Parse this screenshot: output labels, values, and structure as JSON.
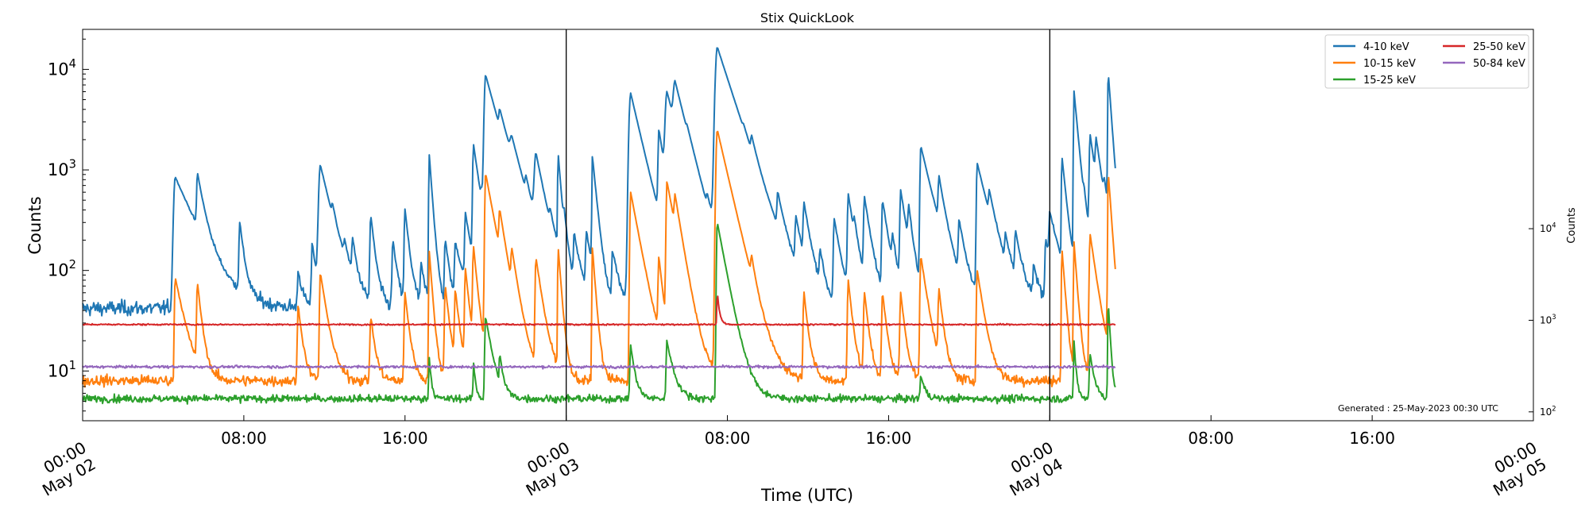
{
  "chart_data": {
    "type": "line",
    "title": "Stix QuickLook",
    "xlabel": "Time (UTC)",
    "ylabel": "Counts",
    "right_ylabel": "Counts",
    "yscale": "log",
    "ylim": [
      3.2,
      25000
    ],
    "xlim_hours": [
      0,
      72
    ],
    "data_end_hour": 51.25,
    "day_separators_hours": [
      24,
      48
    ],
    "x_ticks": [
      {
        "hour": 0,
        "line1": "00:00",
        "line2": "May 02",
        "major": true
      },
      {
        "hour": 8,
        "line1": "08:00",
        "line2": "",
        "major": false
      },
      {
        "hour": 16,
        "line1": "16:00",
        "line2": "",
        "major": false
      },
      {
        "hour": 24,
        "line1": "00:00",
        "line2": "May 03",
        "major": true
      },
      {
        "hour": 32,
        "line1": "08:00",
        "line2": "",
        "major": false
      },
      {
        "hour": 40,
        "line1": "16:00",
        "line2": "",
        "major": false
      },
      {
        "hour": 48,
        "line1": "00:00",
        "line2": "May 04",
        "major": true
      },
      {
        "hour": 56,
        "line1": "08:00",
        "line2": "",
        "major": false
      },
      {
        "hour": 64,
        "line1": "16:00",
        "line2": "",
        "major": false
      },
      {
        "hour": 72,
        "line1": "00:00",
        "line2": "May 05",
        "major": true
      }
    ],
    "y_ticks": [
      {
        "value": 10,
        "base": "10",
        "exp": "1"
      },
      {
        "value": 100,
        "base": "10",
        "exp": "2"
      },
      {
        "value": 1000,
        "base": "10",
        "exp": "3"
      },
      {
        "value": 10000,
        "base": "10",
        "exp": "4"
      }
    ],
    "right_axis": {
      "scale": "log",
      "ylim": [
        80,
        1500000
      ],
      "ticks": [
        {
          "value": 100,
          "base": "10",
          "exp": "2"
        },
        {
          "value": 1000,
          "base": "10",
          "exp": "3"
        },
        {
          "value": 10000,
          "base": "10",
          "exp": "4"
        }
      ]
    },
    "series": [
      {
        "name": "4-10 keV",
        "color": "#1f77b4",
        "baseline": 42,
        "noise": 0.12,
        "flares": [
          [
            4.6,
            850,
            0.1,
            0.9
          ],
          [
            5.7,
            700,
            0.05,
            0.3
          ],
          [
            7.8,
            280,
            0.05,
            0.2
          ],
          [
            10.7,
            100,
            0.05,
            0.2
          ],
          [
            11.4,
            190,
            0.05,
            0.2
          ],
          [
            11.8,
            1100,
            0.1,
            0.5
          ],
          [
            12.4,
            150,
            0.05,
            0.2
          ],
          [
            13.0,
            110,
            0.05,
            0.2
          ],
          [
            13.4,
            160,
            0.05,
            0.2
          ],
          [
            14.3,
            350,
            0.05,
            0.2
          ],
          [
            15.4,
            200,
            0.05,
            0.2
          ],
          [
            16.0,
            400,
            0.05,
            0.2
          ],
          [
            16.8,
            110,
            0.05,
            0.2
          ],
          [
            17.2,
            1450,
            0.03,
            0.15
          ],
          [
            18.0,
            200,
            0.05,
            0.2
          ],
          [
            18.5,
            180,
            0.05,
            0.4
          ],
          [
            19.0,
            330,
            0.05,
            0.3
          ],
          [
            19.4,
            1700,
            0.05,
            0.3
          ],
          [
            19.8,
            200,
            0.05,
            0.3
          ],
          [
            20.0,
            8500,
            0.08,
            0.6
          ],
          [
            20.7,
            1400,
            0.05,
            0.5
          ],
          [
            21.3,
            800,
            0.1,
            0.5
          ],
          [
            22.0,
            300,
            0.05,
            0.3
          ],
          [
            22.5,
            1200,
            0.1,
            0.4
          ],
          [
            23.2,
            150,
            0.05,
            0.3
          ],
          [
            23.6,
            1350,
            0.03,
            0.15
          ],
          [
            23.9,
            180,
            0.05,
            0.2
          ],
          [
            24.4,
            200,
            0.05,
            0.3
          ],
          [
            25.0,
            220,
            0.05,
            0.3
          ],
          [
            25.3,
            1300,
            0.03,
            0.2
          ],
          [
            26.3,
            150,
            0.05,
            0.3
          ],
          [
            27.2,
            5800,
            0.1,
            0.5
          ],
          [
            28.6,
            2200,
            0.05,
            0.3
          ],
          [
            29.0,
            5300,
            0.1,
            0.6
          ],
          [
            29.4,
            4800,
            0.1,
            0.5
          ],
          [
            30.0,
            350,
            0.05,
            0.4
          ],
          [
            31.0,
            180,
            0.05,
            0.3
          ],
          [
            31.5,
            16500,
            0.12,
            0.7
          ],
          [
            32.8,
            300,
            0.05,
            0.3
          ],
          [
            33.2,
            700,
            0.05,
            0.3
          ],
          [
            34.5,
            380,
            0.05,
            0.3
          ],
          [
            35.4,
            270,
            0.05,
            0.3
          ],
          [
            35.8,
            380,
            0.05,
            0.3
          ],
          [
            36.6,
            130,
            0.05,
            0.2
          ],
          [
            37.3,
            320,
            0.05,
            0.3
          ],
          [
            38.0,
            550,
            0.05,
            0.3
          ],
          [
            38.3,
            150,
            0.05,
            0.2
          ],
          [
            38.8,
            500,
            0.05,
            0.3
          ],
          [
            39.7,
            480,
            0.05,
            0.3
          ],
          [
            40.2,
            150,
            0.05,
            0.2
          ],
          [
            40.6,
            600,
            0.05,
            0.3
          ],
          [
            41.0,
            300,
            0.05,
            0.2
          ],
          [
            41.6,
            1700,
            0.05,
            0.5
          ],
          [
            42.5,
            600,
            0.05,
            0.3
          ],
          [
            43.5,
            270,
            0.05,
            0.3
          ],
          [
            44.4,
            1150,
            0.05,
            0.5
          ],
          [
            45.0,
            300,
            0.05,
            0.3
          ],
          [
            45.8,
            150,
            0.05,
            0.3
          ],
          [
            46.3,
            200,
            0.05,
            0.3
          ],
          [
            47.2,
            100,
            0.05,
            0.3
          ],
          [
            47.8,
            200,
            0.05,
            0.3
          ],
          [
            48.0,
            300,
            0.05,
            0.5
          ],
          [
            48.6,
            1300,
            0.03,
            0.2
          ],
          [
            49.2,
            6000,
            0.03,
            0.2
          ],
          [
            49.7,
            200,
            0.05,
            0.3
          ],
          [
            50.0,
            2100,
            0.05,
            0.3
          ],
          [
            50.3,
            1300,
            0.05,
            0.3
          ],
          [
            50.7,
            300,
            0.05,
            0.3
          ],
          [
            50.9,
            9000,
            0.03,
            0.15
          ]
        ]
      },
      {
        "name": "10-15 keV",
        "color": "#ff7f0e",
        "baseline": 8,
        "noise": 0.09,
        "flares": [
          [
            4.6,
            85,
            0.05,
            0.4
          ],
          [
            5.7,
            70,
            0.05,
            0.2
          ],
          [
            10.7,
            45,
            0.05,
            0.2
          ],
          [
            11.8,
            95,
            0.05,
            0.3
          ],
          [
            14.3,
            35,
            0.05,
            0.2
          ],
          [
            16.0,
            60,
            0.05,
            0.2
          ],
          [
            17.2,
            160,
            0.03,
            0.15
          ],
          [
            18.0,
            70,
            0.05,
            0.2
          ],
          [
            18.5,
            60,
            0.05,
            0.2
          ],
          [
            19.0,
            100,
            0.05,
            0.2
          ],
          [
            19.4,
            160,
            0.05,
            0.2
          ],
          [
            20.0,
            920,
            0.05,
            0.4
          ],
          [
            20.7,
            250,
            0.05,
            0.3
          ],
          [
            21.3,
            100,
            0.05,
            0.3
          ],
          [
            22.5,
            130,
            0.05,
            0.3
          ],
          [
            23.6,
            170,
            0.03,
            0.15
          ],
          [
            25.3,
            170,
            0.03,
            0.15
          ],
          [
            27.2,
            600,
            0.05,
            0.4
          ],
          [
            28.6,
            120,
            0.05,
            0.2
          ],
          [
            29.0,
            750,
            0.05,
            0.4
          ],
          [
            29.4,
            300,
            0.05,
            0.3
          ],
          [
            31.5,
            2500,
            0.08,
            0.5
          ],
          [
            33.2,
            60,
            0.05,
            0.2
          ],
          [
            35.8,
            60,
            0.05,
            0.2
          ],
          [
            38.0,
            80,
            0.05,
            0.2
          ],
          [
            38.8,
            60,
            0.05,
            0.2
          ],
          [
            39.7,
            60,
            0.05,
            0.2
          ],
          [
            40.6,
            60,
            0.05,
            0.2
          ],
          [
            41.6,
            140,
            0.05,
            0.3
          ],
          [
            42.5,
            60,
            0.05,
            0.2
          ],
          [
            44.4,
            100,
            0.05,
            0.3
          ],
          [
            48.6,
            170,
            0.03,
            0.15
          ],
          [
            49.2,
            190,
            0.03,
            0.15
          ],
          [
            50.0,
            230,
            0.05,
            0.3
          ],
          [
            50.9,
            950,
            0.03,
            0.15
          ]
        ]
      },
      {
        "name": "15-25 keV",
        "color": "#2ca02c",
        "baseline": 5.3,
        "noise": 0.06,
        "flares": [
          [
            17.2,
            14,
            0.03,
            0.1
          ],
          [
            19.4,
            12,
            0.03,
            0.1
          ],
          [
            20.0,
            35,
            0.05,
            0.3
          ],
          [
            20.7,
            12,
            0.03,
            0.15
          ],
          [
            27.2,
            18,
            0.05,
            0.2
          ],
          [
            29.0,
            20,
            0.05,
            0.3
          ],
          [
            31.5,
            300,
            0.05,
            0.4
          ],
          [
            41.6,
            9,
            0.05,
            0.2
          ],
          [
            49.2,
            20,
            0.03,
            0.1
          ],
          [
            50.0,
            15,
            0.05,
            0.2
          ],
          [
            50.9,
            50,
            0.03,
            0.1
          ]
        ]
      },
      {
        "name": "25-50 keV",
        "color": "#d62728",
        "baseline": 29,
        "noise": 0.012,
        "flares": [
          [
            31.5,
            60,
            0.03,
            0.1
          ]
        ]
      },
      {
        "name": "50-84 keV",
        "color": "#9467bd",
        "baseline": 11,
        "noise": 0.02,
        "flares": []
      }
    ],
    "legend": {
      "placement": "top-right",
      "columns": 2,
      "entries": [
        "4-10 keV",
        "10-15 keV",
        "15-25 keV",
        "25-50 keV",
        "50-84 keV"
      ]
    },
    "annotation": "Generated : 25-May-2023 00:30 UTC"
  }
}
